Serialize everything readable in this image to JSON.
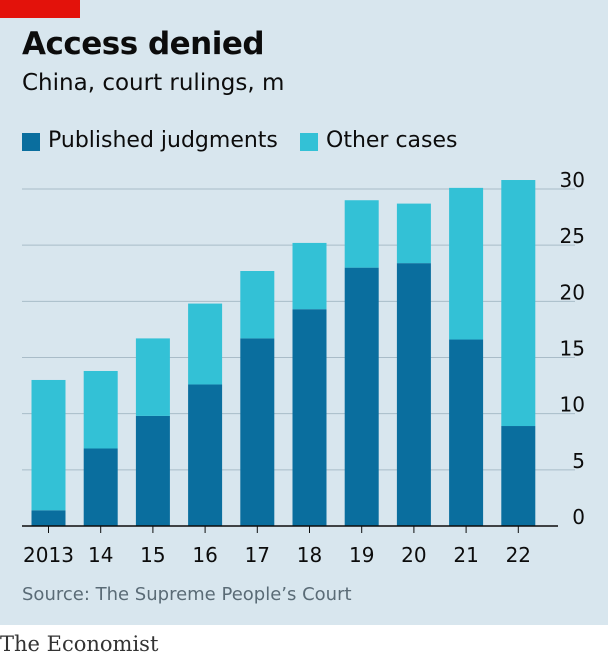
{
  "header": {
    "title": "Access denied",
    "subtitle": "China, court rulings, m"
  },
  "legend": {
    "published_label": "Published judgments",
    "other_label": "Other cases"
  },
  "colors": {
    "published": "#0a6e9e",
    "other": "#33c1d6",
    "panel_background": "#d8e6ee",
    "accent_red": "#e3120b",
    "gridline": "#a9bcc8",
    "axis": "#0c0c0c"
  },
  "footer": {
    "source": "Source: The Supreme People’s Court",
    "brand": "The Economist"
  },
  "chart_data": {
    "type": "bar",
    "stacked": true,
    "title": "Access denied",
    "subtitle": "China, court rulings, m",
    "xlabel": "",
    "ylabel": "",
    "categories": [
      "2013",
      "14",
      "15",
      "16",
      "17",
      "18",
      "19",
      "20",
      "21",
      "22"
    ],
    "series": [
      {
        "name": "Published judgments",
        "values": [
          1.4,
          6.9,
          9.8,
          12.6,
          16.7,
          19.3,
          23.0,
          23.4,
          16.6,
          8.9
        ]
      },
      {
        "name": "Other cases",
        "values": [
          11.6,
          6.9,
          6.9,
          7.2,
          6.0,
          5.9,
          6.0,
          5.3,
          13.5,
          21.9
        ]
      }
    ],
    "ylim": [
      0,
      30
    ],
    "yticks": [
      0,
      5,
      10,
      15,
      20,
      25,
      30
    ],
    "y_axis_side": "right",
    "grid": true,
    "legend_position": "top-left"
  }
}
